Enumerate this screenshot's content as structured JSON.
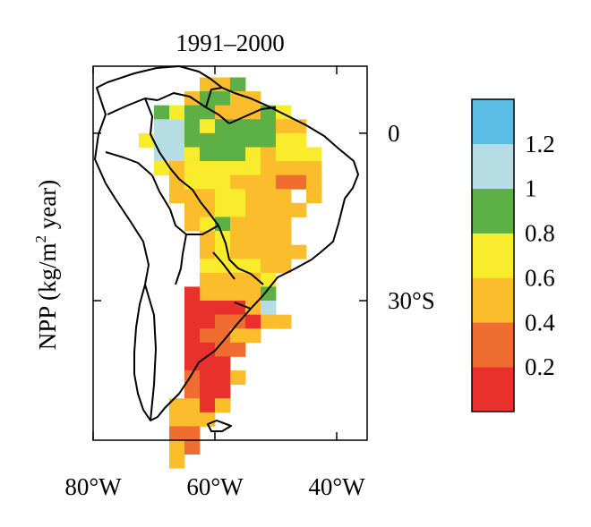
{
  "chart_data": {
    "type": "heatmap",
    "title": "1991–2000",
    "ylabel_prefix": "NPP (kg/m",
    "ylabel_sup": "2",
    "ylabel_suffix": " year)",
    "x_ticks": [
      {
        "value": -80,
        "label": "80°W"
      },
      {
        "value": -60,
        "label": "60°W"
      },
      {
        "value": -40,
        "label": "40°W"
      }
    ],
    "y_ticks": [
      {
        "value": 0,
        "label": "0"
      },
      {
        "value": -30,
        "label": "30°S"
      }
    ],
    "lon_range": [
      -80,
      -35
    ],
    "lat_range": [
      -55,
      12
    ],
    "grid_step_deg": 2.5,
    "colorbar": {
      "colors": [
        "#e8302c",
        "#ef6d30",
        "#fbbd2b",
        "#f8ec2c",
        "#5db046",
        "#b6dde3",
        "#5cbde4"
      ],
      "bounds": [
        0,
        0.2,
        0.4,
        0.6,
        0.8,
        1.0,
        1.2,
        1.4
      ],
      "labels": [
        "0.2",
        "0.4",
        "0.6",
        "0.8",
        "1",
        "1.2"
      ]
    },
    "grid_rows_class_codes": [
      "......224........",
      ".....24422.......",
      "...434422243.....",
      "...5543444422....",
      "..35544444433....",
      "...55344432333...",
      "...32333332222...",
      "....2333222112...",
      "....22233222.2...",
      ".....22332222....",
      ".....2342222.....",
      "......232222.....",
      "......2322222....",
      "......333322.....",
      "......22223......",
      ".....022224......",
      ".....000025......",
      ".....0011022.....",
      ".....01122.......",
      ".....0011........",
      ".....000.........",
      ".....1002........",
      ".....100.........",
      "....2202.........",
      "....222..........",
      "....11...........",
      "....21...........",
      "....2............"
    ]
  }
}
